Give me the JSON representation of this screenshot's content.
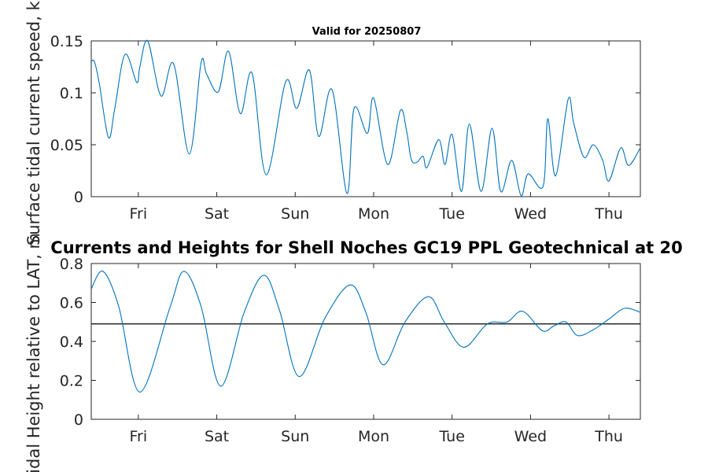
{
  "colors": {
    "series": "#0072bd",
    "axis": "#262626",
    "reference_line": "#000000"
  },
  "chart_data": [
    {
      "type": "line",
      "title": "Valid for 20250807",
      "ylabel": "Surface tidal current speed, kn",
      "xticks": [
        "Fri",
        "Sat",
        "Sun",
        "Mon",
        "Tue",
        "Wed",
        "Thu"
      ],
      "xlim": [
        0,
        7
      ],
      "ylim": [
        0,
        0.15
      ],
      "yticks": [
        "0",
        "0.05",
        "0.1",
        "0.15"
      ],
      "series": [
        {
          "x": [
            0,
            0.04,
            0.1,
            0.22,
            0.3,
            0.43,
            0.58,
            0.62,
            0.72,
            0.89,
            1.05,
            1.25,
            1.4,
            1.47,
            1.62,
            1.75,
            1.9,
            2.05,
            2.23,
            2.48,
            2.62,
            2.78,
            2.9,
            3.07,
            3.26,
            3.35,
            3.52,
            3.6,
            3.78,
            3.94,
            4.02,
            4.08,
            4.15,
            4.23,
            4.28,
            4.43,
            4.51,
            4.6,
            4.72,
            4.82,
            4.97,
            5.11,
            5.22,
            5.36,
            5.48,
            5.57,
            5.76,
            5.82,
            5.92,
            6.08,
            6.15,
            6.28,
            6.4,
            6.52,
            6.6,
            6.75,
            6.85,
            7.0
          ],
          "y": [
            0.13,
            0.13,
            0.11,
            0.057,
            0.085,
            0.137,
            0.11,
            0.125,
            0.15,
            0.097,
            0.128,
            0.041,
            0.129,
            0.118,
            0.101,
            0.14,
            0.08,
            0.119,
            0.021,
            0.111,
            0.085,
            0.122,
            0.058,
            0.103,
            0.003,
            0.085,
            0.061,
            0.095,
            0.031,
            0.083,
            0.063,
            0.036,
            0.033,
            0.039,
            0.028,
            0.055,
            0.031,
            0.06,
            0.005,
            0.07,
            0.005,
            0.066,
            0.005,
            0.035,
            0.001,
            0.022,
            0.01,
            0.075,
            0.02,
            0.094,
            0.071,
            0.038,
            0.05,
            0.035,
            0.015,
            0.047,
            0.03,
            0.047
          ]
        }
      ]
    },
    {
      "type": "line",
      "title": "Currents and Heights for Shell Noches   GC19 PPL  Geotechnical at 20",
      "ylabel": "Tidal Height relative to LAT, m",
      "xticks": [
        "Fri",
        "Sat",
        "Sun",
        "Mon",
        "Tue",
        "Wed",
        "Thu"
      ],
      "xlim": [
        0,
        7
      ],
      "ylim": [
        0,
        0.8
      ],
      "yticks": [
        "0",
        "0.2",
        "0.4",
        "0.6",
        "0.8"
      ],
      "reference_line": 0.49,
      "series": [
        {
          "x": [
            0,
            0.15,
            0.35,
            0.62,
            1.0,
            1.18,
            1.4,
            1.65,
            1.95,
            2.2,
            2.4,
            2.65,
            2.98,
            3.3,
            3.5,
            3.72,
            4.0,
            4.3,
            4.5,
            4.75,
            5.05,
            5.3,
            5.5,
            5.75,
            5.9,
            6.05,
            6.2,
            6.4,
            6.6,
            6.8,
            7.0
          ],
          "y": [
            0.67,
            0.76,
            0.58,
            0.14,
            0.57,
            0.76,
            0.58,
            0.17,
            0.55,
            0.74,
            0.56,
            0.22,
            0.52,
            0.69,
            0.55,
            0.28,
            0.5,
            0.63,
            0.5,
            0.37,
            0.49,
            0.5,
            0.555,
            0.455,
            0.48,
            0.5,
            0.43,
            0.46,
            0.515,
            0.57,
            0.55
          ]
        }
      ]
    }
  ]
}
